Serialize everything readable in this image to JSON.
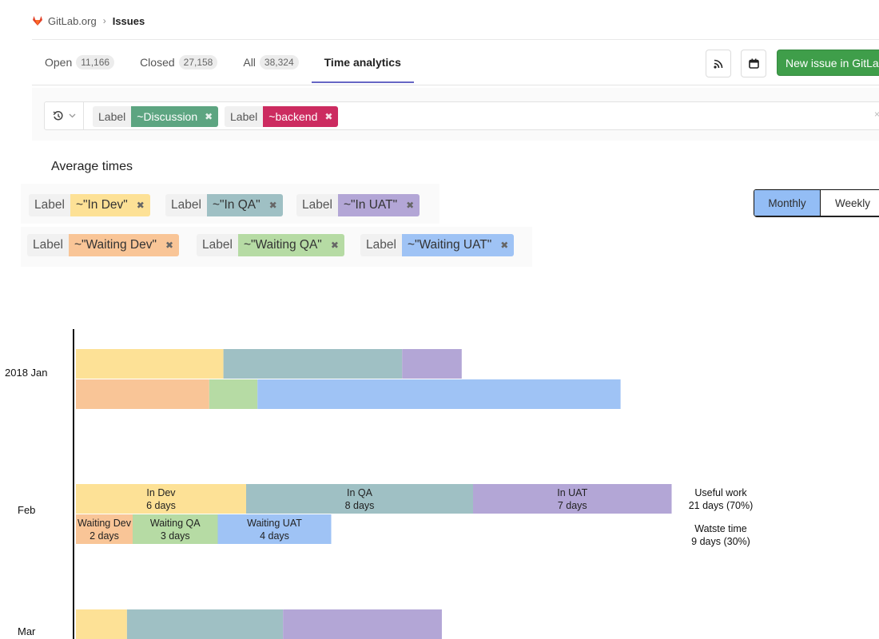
{
  "breadcrumb": {
    "group": "GitLab.org",
    "separator": "›",
    "current": "Issues"
  },
  "tabs": [
    {
      "label": "Open",
      "count": "11,166"
    },
    {
      "label": "Closed",
      "count": "27,158"
    },
    {
      "label": "All",
      "count": "38,324"
    },
    {
      "label": "Time analytics",
      "count": ""
    }
  ],
  "header_actions": {
    "rss_icon": "rss-icon",
    "calendar_icon": "calendar-icon",
    "new_issue_label": "New issue in GitLab"
  },
  "filter": {
    "history_icon": "history-icon",
    "clear": "×",
    "tokens": [
      {
        "key": "Label",
        "value": "~Discussion",
        "color": "#5da581",
        "text_color": "#ffffff"
      },
      {
        "key": "Label",
        "value": "~backend",
        "color": "#cc2b60",
        "text_color": "#ffffff"
      }
    ]
  },
  "average": {
    "title": "Average times",
    "row1": [
      {
        "key": "Label",
        "value": "~\"In Dev\"",
        "color": "#fde196"
      },
      {
        "key": "Label",
        "value": "~\"In QA\"",
        "color": "#9fc0c4"
      },
      {
        "key": "Label",
        "value": "~\"In UAT\"",
        "color": "#b3a6d6"
      }
    ],
    "row2": [
      {
        "key": "Label",
        "value": "~\"Waiting Dev\"",
        "color": "#f9c597"
      },
      {
        "key": "Label",
        "value": "~\"Waiting QA\"",
        "color": "#b6dba4"
      },
      {
        "key": "Label",
        "value": "~\"Waiting UAT\"",
        "color": "#9fc3f5"
      }
    ]
  },
  "toggle": {
    "monthly": "Monthly",
    "weekly": "Weekly",
    "selected": "Monthly"
  },
  "chart_data": {
    "type": "bar",
    "orientation": "horizontal-stacked",
    "unit": "days",
    "colors": {
      "In Dev": "#fde196",
      "In QA": "#9fc0c4",
      "In UAT": "#b3a6d6",
      "Waiting Dev": "#f9c597",
      "Waiting QA": "#b6dba4",
      "Waiting UAT": "#9fc3f5"
    },
    "months": [
      {
        "label": "2018 Jan",
        "useful": [
          {
            "stage": "In Dev",
            "days": 5.2
          },
          {
            "stage": "In QA",
            "days": 6.3
          },
          {
            "stage": "In UAT",
            "days": 2.1
          }
        ],
        "waste": [
          {
            "stage": "Waiting Dev",
            "days": 4.7
          },
          {
            "stage": "Waiting QA",
            "days": 1.7
          },
          {
            "stage": "Waiting UAT",
            "days": 12.8
          }
        ]
      },
      {
        "label": "Feb",
        "useful": [
          {
            "stage": "In Dev",
            "days": 6,
            "text": "In Dev",
            "sub": "6 days"
          },
          {
            "stage": "In QA",
            "days": 8,
            "text": "In QA",
            "sub": "8 days"
          },
          {
            "stage": "In UAT",
            "days": 7,
            "text": "In UAT",
            "sub": "7 days"
          }
        ],
        "waste": [
          {
            "stage": "Waiting Dev",
            "days": 2,
            "text": "Waiting Dev",
            "sub": "2 days"
          },
          {
            "stage": "Waiting QA",
            "days": 3,
            "text": "Waiting QA",
            "sub": "3 days"
          },
          {
            "stage": "Waiting UAT",
            "days": 4,
            "text": "Waiting UAT",
            "sub": "4 days"
          }
        ],
        "useful_summary": [
          "Useful work",
          "21 days (70%)"
        ],
        "waste_summary": [
          "Watste time",
          "9 days (30%)"
        ]
      },
      {
        "label": "Mar",
        "useful": [
          {
            "stage": "In Dev",
            "days": 1.8
          },
          {
            "stage": "In QA",
            "days": 5.5
          },
          {
            "stage": "In UAT",
            "days": 5.6
          }
        ],
        "waste": []
      }
    ]
  }
}
